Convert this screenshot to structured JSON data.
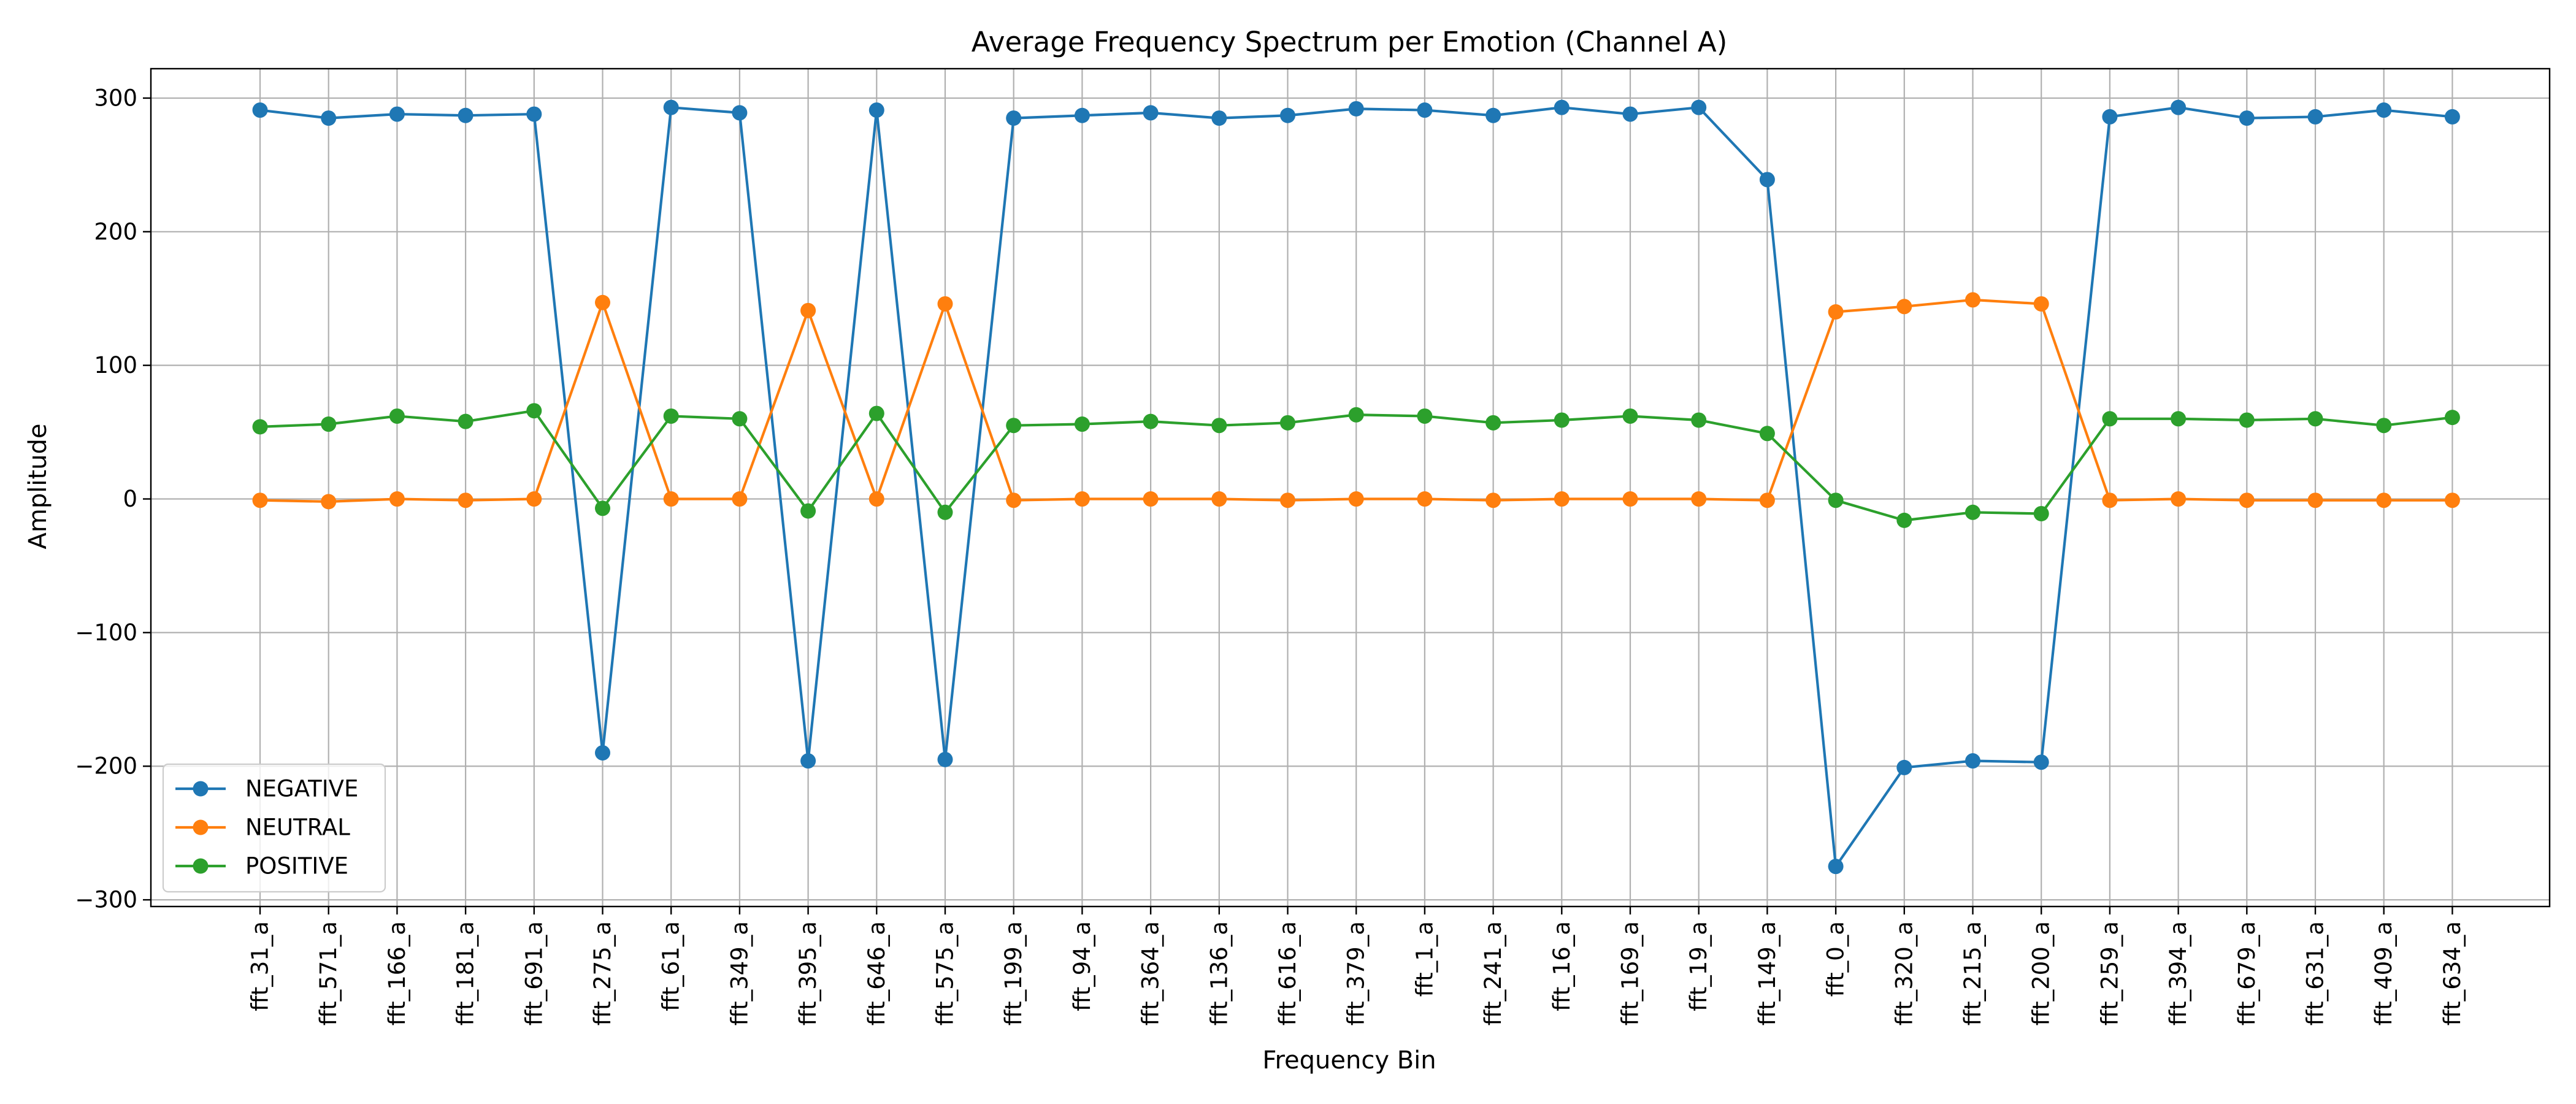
{
  "chart_data": {
    "type": "line",
    "title": "Average Frequency Spectrum per Emotion (Channel A)",
    "xlabel": "Frequency Bin",
    "ylabel": "Amplitude",
    "categories": [
      "fft_31_a",
      "fft_571_a",
      "fft_166_a",
      "fft_181_a",
      "fft_691_a",
      "fft_275_a",
      "fft_61_a",
      "fft_349_a",
      "fft_395_a",
      "fft_646_a",
      "fft_575_a",
      "fft_199_a",
      "fft_94_a",
      "fft_364_a",
      "fft_136_a",
      "fft_616_a",
      "fft_379_a",
      "fft_1_a",
      "fft_241_a",
      "fft_16_a",
      "fft_169_a",
      "fft_19_a",
      "fft_149_a",
      "fft_0_a",
      "fft_320_a",
      "fft_215_a",
      "fft_200_a",
      "fft_259_a",
      "fft_394_a",
      "fft_679_a",
      "fft_631_a",
      "fft_409_a",
      "fft_634_a"
    ],
    "ylim": [
      -305,
      322
    ],
    "yticks": [
      300,
      200,
      100,
      0,
      -100,
      -200,
      -300
    ],
    "grid": true,
    "legend_position": "lower-left",
    "series": [
      {
        "name": "NEGATIVE",
        "color": "#1f77b4",
        "values": [
          291,
          285,
          288,
          287,
          288,
          -190,
          293,
          289,
          -196,
          291,
          -195,
          285,
          287,
          289,
          285,
          287,
          292,
          291,
          287,
          293,
          288,
          293,
          239,
          -275,
          -201,
          -196,
          -197,
          286,
          293,
          285,
          286,
          291,
          286
        ]
      },
      {
        "name": "NEUTRAL",
        "color": "#ff7f0e",
        "values": [
          -1,
          -2,
          0,
          -1,
          0,
          147,
          0,
          0,
          141,
          0,
          146,
          -1,
          0,
          0,
          0,
          -1,
          0,
          0,
          -1,
          0,
          0,
          0,
          -1,
          140,
          144,
          149,
          146,
          -1,
          0,
          -1,
          -1,
          -1,
          -1
        ]
      },
      {
        "name": "POSITIVE",
        "color": "#2ca02c",
        "values": [
          54,
          56,
          62,
          58,
          66,
          -7,
          62,
          60,
          -9,
          64,
          -10,
          55,
          56,
          58,
          55,
          57,
          63,
          62,
          57,
          59,
          62,
          59,
          49,
          -1,
          -16,
          -10,
          -11,
          60,
          60,
          59,
          60,
          55,
          61
        ]
      }
    ]
  }
}
